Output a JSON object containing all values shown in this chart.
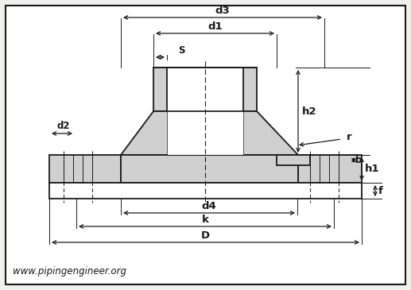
{
  "bg": "#f0f0ec",
  "white": "#ffffff",
  "lc": "#1a1a1a",
  "gray_fill": "#d0d0d0",
  "website": "www.pipingengineer.org",
  "labels": {
    "d3": "d3",
    "d1": "d1",
    "S": "S",
    "h2": "h2",
    "d2": "d2",
    "r": "r",
    "h1": "h1",
    "b": "b",
    "d4": "d4",
    "k": "k",
    "D": "D",
    "f": "f"
  },
  "figsize": [
    5.17,
    3.65
  ],
  "dpi": 100
}
